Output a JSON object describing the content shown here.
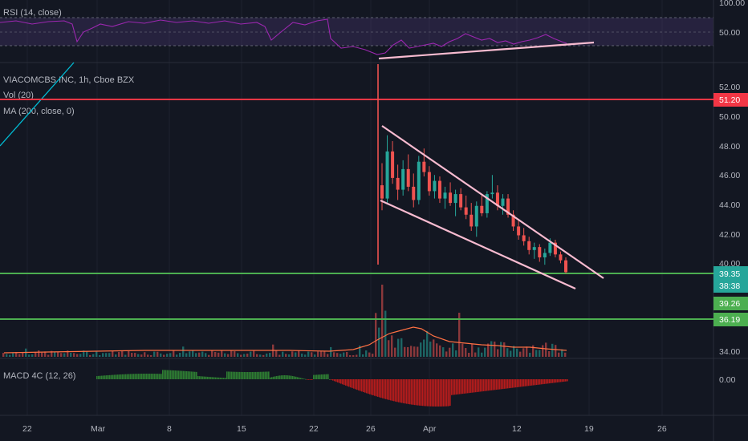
{
  "chart_data": {
    "type": "candlestick",
    "symbol_label": "VIACOMCBS INC, 1h, Cboe BZX",
    "indicators": {
      "rsi": {
        "label": "RSI (14, close)",
        "levels": [
          "100.00",
          "50.00"
        ]
      },
      "vol": {
        "label": "Vol (20)"
      },
      "ma": {
        "label": "MA (200, close, 0)"
      },
      "macd": {
        "label": "MACD 4C (12, 26)",
        "levels": [
          "0.00"
        ]
      }
    },
    "price_axis": [
      "52.00",
      "50.00",
      "48.00",
      "46.00",
      "44.00",
      "42.00",
      "40.00",
      "34.00"
    ],
    "price_tags": [
      {
        "text": "51.20",
        "color": "#f23645"
      },
      {
        "text": "39.35",
        "color": "#26a69a"
      },
      {
        "text": "38:38",
        "color": "#26a69a"
      },
      {
        "text": "39.26",
        "color": "#4caf50"
      },
      {
        "text": "36.19",
        "color": "#4caf50"
      }
    ],
    "horizontal_lines": [
      {
        "price": 51.2,
        "color": "#f23645"
      },
      {
        "price": 39.35,
        "color": "#4caf50"
      },
      {
        "price": 36.19,
        "color": "#4caf50"
      }
    ],
    "x_ticks": [
      "22",
      "Mar",
      "8",
      "15",
      "22",
      "26",
      "Apr",
      "12",
      "19",
      "26"
    ],
    "candles": [
      {
        "o": 45.5,
        "h": 47.0,
        "l": 43.8,
        "c": 44.6
      },
      {
        "o": 44.6,
        "h": 48.9,
        "l": 44.2,
        "c": 47.8
      },
      {
        "o": 47.8,
        "h": 48.5,
        "l": 45.6,
        "c": 46.0
      },
      {
        "o": 46.0,
        "h": 46.9,
        "l": 44.5,
        "c": 45.2
      },
      {
        "o": 45.2,
        "h": 47.2,
        "l": 44.8,
        "c": 46.6
      },
      {
        "o": 46.6,
        "h": 47.6,
        "l": 45.1,
        "c": 45.4
      },
      {
        "o": 45.4,
        "h": 46.3,
        "l": 44.0,
        "c": 44.5
      },
      {
        "o": 44.5,
        "h": 47.5,
        "l": 44.2,
        "c": 47.1
      },
      {
        "o": 47.1,
        "h": 48.0,
        "l": 46.1,
        "c": 46.4
      },
      {
        "o": 46.4,
        "h": 46.8,
        "l": 44.8,
        "c": 45.1
      },
      {
        "o": 45.1,
        "h": 46.2,
        "l": 44.6,
        "c": 45.8
      },
      {
        "o": 45.8,
        "h": 46.1,
        "l": 44.3,
        "c": 44.6
      },
      {
        "o": 44.6,
        "h": 45.4,
        "l": 43.9,
        "c": 45.0
      },
      {
        "o": 45.0,
        "h": 45.7,
        "l": 44.1,
        "c": 44.3
      },
      {
        "o": 44.3,
        "h": 45.2,
        "l": 43.4,
        "c": 44.9
      },
      {
        "o": 44.9,
        "h": 45.3,
        "l": 43.8,
        "c": 44.0
      },
      {
        "o": 44.0,
        "h": 44.8,
        "l": 43.2,
        "c": 43.5
      },
      {
        "o": 43.5,
        "h": 44.3,
        "l": 42.4,
        "c": 42.7
      },
      {
        "o": 42.7,
        "h": 44.4,
        "l": 42.0,
        "c": 44.1
      },
      {
        "o": 44.1,
        "h": 44.8,
        "l": 43.4,
        "c": 43.6
      },
      {
        "o": 43.6,
        "h": 45.1,
        "l": 43.3,
        "c": 44.9
      },
      {
        "o": 44.9,
        "h": 46.2,
        "l": 44.6,
        "c": 45.0
      },
      {
        "o": 45.0,
        "h": 45.5,
        "l": 43.8,
        "c": 44.1
      },
      {
        "o": 44.1,
        "h": 44.9,
        "l": 43.5,
        "c": 44.6
      },
      {
        "o": 44.6,
        "h": 44.9,
        "l": 43.3,
        "c": 43.5
      },
      {
        "o": 43.5,
        "h": 43.8,
        "l": 42.4,
        "c": 42.7
      },
      {
        "o": 42.7,
        "h": 43.1,
        "l": 41.8,
        "c": 42.1
      },
      {
        "o": 42.1,
        "h": 42.6,
        "l": 41.4,
        "c": 41.7
      },
      {
        "o": 41.7,
        "h": 42.0,
        "l": 40.8,
        "c": 41.1
      },
      {
        "o": 41.1,
        "h": 41.6,
        "l": 40.5,
        "c": 41.3
      },
      {
        "o": 41.3,
        "h": 41.5,
        "l": 40.3,
        "c": 40.6
      },
      {
        "o": 40.6,
        "h": 41.2,
        "l": 40.1,
        "c": 40.9
      },
      {
        "o": 40.9,
        "h": 41.9,
        "l": 40.7,
        "c": 41.6
      },
      {
        "o": 41.6,
        "h": 41.8,
        "l": 40.6,
        "c": 40.8
      },
      {
        "o": 40.8,
        "h": 41.0,
        "l": 40.2,
        "c": 40.4
      },
      {
        "o": 40.4,
        "h": 40.6,
        "l": 39.5,
        "c": 39.6
      }
    ],
    "drawings": [
      "falling wedge (upper trendline)",
      "falling wedge (lower trendline)",
      "RSI rising trendline"
    ]
  }
}
